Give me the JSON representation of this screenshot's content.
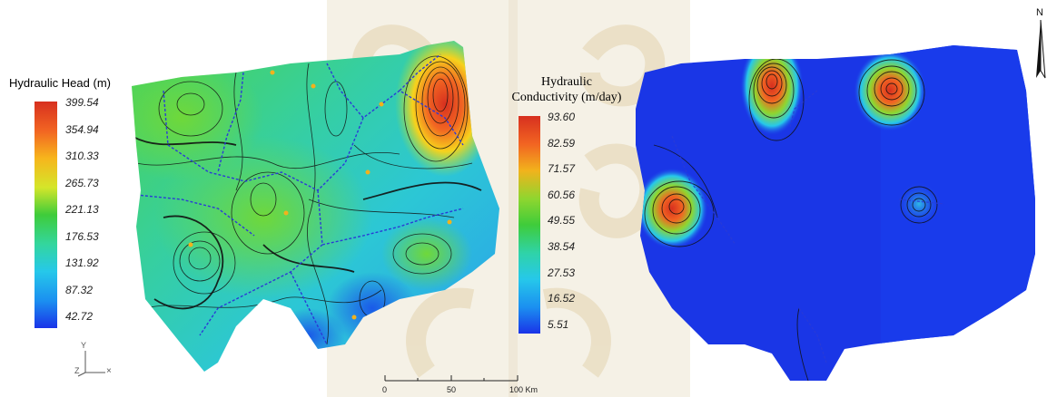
{
  "left_legend": {
    "title": "Hydraulic Head (m)",
    "ticks": [
      "399.54",
      "354.94",
      "310.33",
      "265.73",
      "221.13",
      "176.53",
      "131.92",
      "87.32",
      "42.72"
    ],
    "colors": [
      "#d7301f",
      "#f26522",
      "#f7b51c",
      "#d4e62a",
      "#3fcc3a",
      "#33d69e",
      "#26c8ea",
      "#1b8ff0",
      "#1a33e8"
    ]
  },
  "right_legend": {
    "title_line1": "Hydraulic",
    "title_line2": "Conductivity (m/day)",
    "ticks": [
      "93.60",
      "82.59",
      "71.57",
      "60.56",
      "49.55",
      "38.54",
      "27.53",
      "16.52",
      "5.51"
    ],
    "colors": [
      "#d7301f",
      "#f26522",
      "#f2b21c",
      "#8fd62f",
      "#3fcc3a",
      "#2fd3a8",
      "#26c8ea",
      "#1b8ff0",
      "#1a33e8"
    ]
  },
  "axis_indicator": {
    "y": "Y",
    "z": "Z",
    "x": "×"
  },
  "scale_bar": {
    "labels": [
      "0",
      "50",
      "100 Km"
    ]
  },
  "north_arrow": {
    "label": "N"
  },
  "colors": {
    "network": "#2a3bd6",
    "contour": "#111111",
    "watermark": "#ece6d6"
  }
}
